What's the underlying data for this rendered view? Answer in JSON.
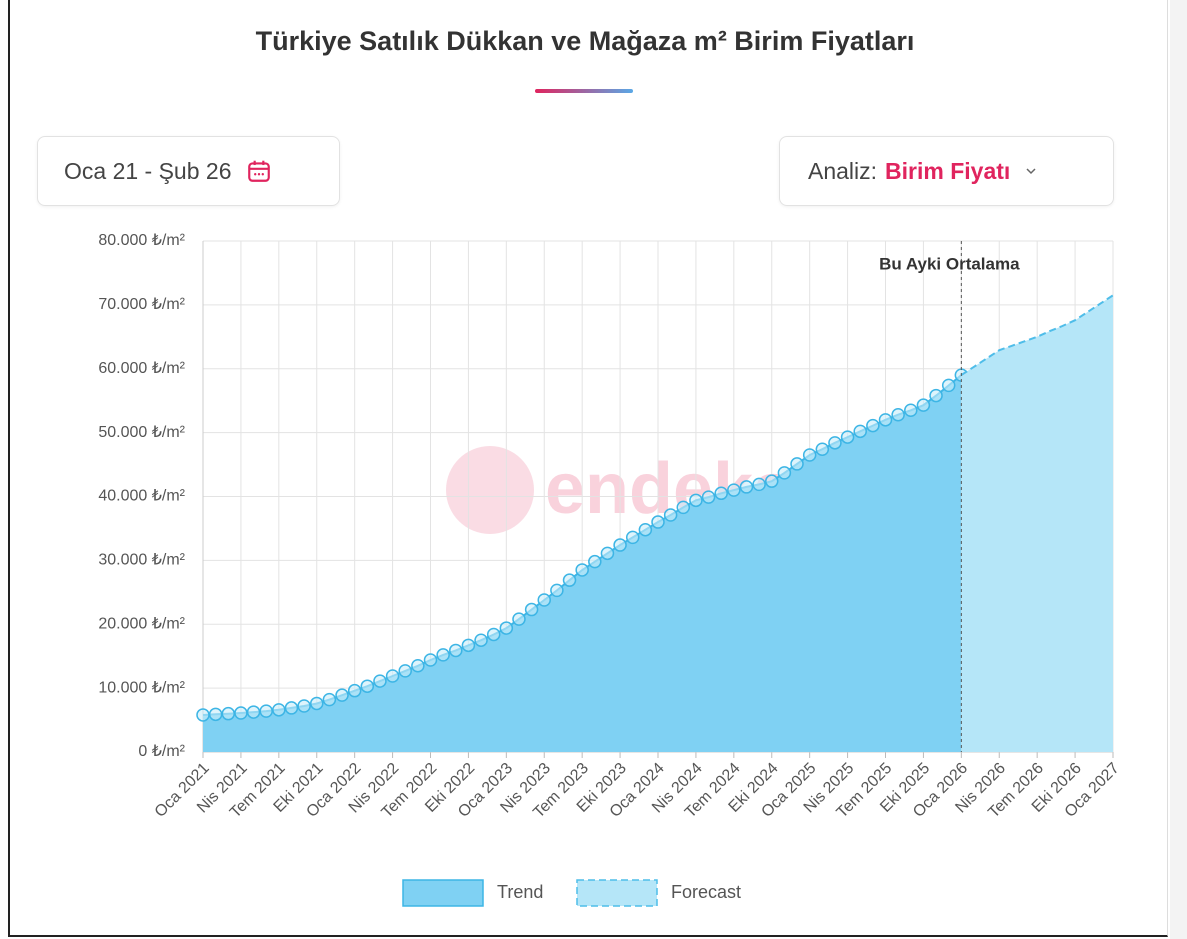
{
  "controls": {
    "date_range": "Oca 21 - Şub 26",
    "analysis_label": "Analiz:",
    "analysis_value": "Birim Fiyatı"
  },
  "chart_data": {
    "type": "area",
    "title": "Türkiye Satılık Dükkan ve Mağaza m² Birim Fiyatları",
    "watermark": "endeksa",
    "categories": [
      "Oca 2021",
      null,
      null,
      "Nis 2021",
      null,
      null,
      "Tem 2021",
      null,
      null,
      "Eki 2021",
      null,
      null,
      "Oca 2022",
      null,
      null,
      "Nis 2022",
      null,
      null,
      "Tem 2022",
      null,
      null,
      "Eki 2022",
      null,
      null,
      "Oca 2023",
      null,
      null,
      "Nis 2023",
      null,
      null,
      "Tem 2023",
      null,
      null,
      "Eki 2023",
      null,
      null,
      "Oca 2024",
      null,
      null,
      "Nis 2024",
      null,
      null,
      "Tem 2024",
      null,
      null,
      "Eki 2024",
      null,
      null,
      "Oca 2025",
      null,
      null,
      "Nis 2025",
      null,
      null,
      "Tem 2025",
      null,
      null,
      "Eki 2025",
      null,
      null,
      "Oca 2026",
      null,
      null,
      "Nis 2026",
      null,
      null,
      "Tem 2026",
      null,
      null,
      "Eki 2026",
      null,
      null,
      "Oca 2027"
    ],
    "series": [
      {
        "name": "Trend",
        "color": "#7fd1f3",
        "line_color": "#3db5e5",
        "markers": true,
        "dashed": false,
        "values": [
          5800,
          5900,
          6000,
          6100,
          6250,
          6400,
          6600,
          6900,
          7200,
          7600,
          8200,
          8900,
          9600,
          10300,
          11100,
          11900,
          12700,
          13500,
          14400,
          15200,
          15900,
          16700,
          17500,
          18400,
          19400,
          20800,
          22300,
          23800,
          25300,
          26900,
          28500,
          29800,
          31100,
          32400,
          33600,
          34800,
          36000,
          37100,
          38300,
          39400,
          39900,
          40500,
          41000,
          41500,
          41900,
          42400,
          43700,
          45100,
          46500,
          47400,
          48400,
          49300,
          50200,
          51100,
          52000,
          52800,
          53500,
          54300,
          55800,
          57400,
          59000,
          null,
          null,
          null,
          null,
          null,
          null,
          null,
          null,
          null,
          null,
          null,
          null
        ]
      },
      {
        "name": "Forecast",
        "color": "#b5e6f8",
        "line_color": "#4fbde9",
        "markers": false,
        "dashed": true,
        "values": [
          null,
          null,
          null,
          null,
          null,
          null,
          null,
          null,
          null,
          null,
          null,
          null,
          null,
          null,
          null,
          null,
          null,
          null,
          null,
          null,
          null,
          null,
          null,
          null,
          null,
          null,
          null,
          null,
          null,
          null,
          null,
          null,
          null,
          null,
          null,
          null,
          null,
          null,
          null,
          null,
          null,
          null,
          null,
          null,
          null,
          null,
          null,
          null,
          null,
          null,
          null,
          null,
          null,
          null,
          null,
          null,
          null,
          null,
          null,
          null,
          59000,
          60300,
          61600,
          62900,
          63600,
          64300,
          65000,
          65900,
          66700,
          67600,
          68900,
          70200,
          71500
        ]
      }
    ],
    "ylim": [
      0,
      80000
    ],
    "yticks": [
      {
        "value": 0,
        "label": "0 ₺/m²"
      },
      {
        "value": 10000,
        "label": "10.000 ₺/m²"
      },
      {
        "value": 20000,
        "label": "20.000 ₺/m²"
      },
      {
        "value": 30000,
        "label": "30.000 ₺/m²"
      },
      {
        "value": 40000,
        "label": "40.000 ₺/m²"
      },
      {
        "value": 50000,
        "label": "50.000 ₺/m²"
      },
      {
        "value": 60000,
        "label": "60.000 ₺/m²"
      },
      {
        "value": 70000,
        "label": "70.000 ₺/m²"
      },
      {
        "value": 80000,
        "label": "80.000 ₺/m²"
      }
    ],
    "grid": true,
    "annotation": {
      "label": "Bu Ayki Ortalama",
      "x": "Oca 2026"
    },
    "legend": "bottom"
  }
}
